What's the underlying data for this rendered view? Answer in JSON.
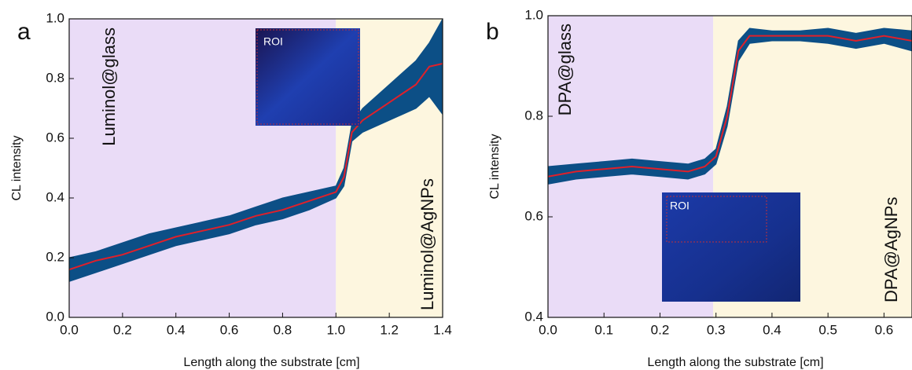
{
  "chart_data": [
    {
      "type": "line",
      "panel_label": "a",
      "xlabel": "Length along the substrate [cm]",
      "ylabel": "CL intensity",
      "xlim": [
        0,
        1.4
      ],
      "ylim": [
        0,
        1.0
      ],
      "xticks": [
        {
          "value": 0,
          "label": "0.0"
        },
        0.2,
        0.4,
        0.6,
        0.8,
        {
          "value": 1,
          "label": "1.0"
        },
        1.2,
        1.4
      ],
      "yticks": [
        {
          "value": 0,
          "label": "0.0"
        },
        0.2,
        0.4,
        0.6,
        0.8,
        {
          "value": 1,
          "label": "1.0"
        }
      ],
      "regions": [
        {
          "label": "Luminol@glass",
          "x": [
            0,
            1.0
          ],
          "color": "#eadcf7"
        },
        {
          "label": "Luminol@AgNPs",
          "x": [
            1.0,
            1.4
          ],
          "color": "#fdf6df"
        }
      ],
      "inset_label": "ROI",
      "x": [
        0,
        0.1,
        0.2,
        0.3,
        0.4,
        0.5,
        0.6,
        0.7,
        0.8,
        0.9,
        1.0,
        1.03,
        1.06,
        1.1,
        1.2,
        1.3,
        1.35,
        1.4
      ],
      "band": {
        "color": "#0c4f86",
        "lower": [
          0.12,
          0.15,
          0.18,
          0.21,
          0.24,
          0.26,
          0.28,
          0.31,
          0.33,
          0.36,
          0.4,
          0.44,
          0.59,
          0.62,
          0.66,
          0.7,
          0.74,
          0.68
        ],
        "upper": [
          0.2,
          0.22,
          0.25,
          0.28,
          0.3,
          0.32,
          0.34,
          0.37,
          0.4,
          0.42,
          0.44,
          0.5,
          0.65,
          0.7,
          0.78,
          0.86,
          0.92,
          1.0
        ]
      },
      "series": [
        {
          "color": "#e0202a",
          "values": [
            0.16,
            0.19,
            0.21,
            0.24,
            0.27,
            0.29,
            0.31,
            0.34,
            0.36,
            0.39,
            0.42,
            0.47,
            0.62,
            0.66,
            0.72,
            0.78,
            0.84,
            0.85
          ]
        }
      ]
    },
    {
      "type": "line",
      "panel_label": "b",
      "xlabel": "Length along the substrate [cm]",
      "ylabel": "CL intensity",
      "xlim": [
        0,
        0.65
      ],
      "ylim": [
        0.4,
        1.0
      ],
      "xticks": [
        {
          "value": 0,
          "label": "0.0"
        },
        0.1,
        0.2,
        0.3,
        0.4,
        0.5,
        0.6
      ],
      "yticks": [
        0.4,
        0.6,
        0.8,
        {
          "value": 1,
          "label": "1.0"
        }
      ],
      "regions": [
        {
          "label": "DPA@glass",
          "x": [
            0,
            0.295
          ],
          "color": "#eadcf7"
        },
        {
          "label": "DPA@AgNPs",
          "x": [
            0.295,
            0.65
          ],
          "color": "#fdf6df"
        }
      ],
      "inset_label": "ROI",
      "x": [
        0,
        0.05,
        0.1,
        0.15,
        0.2,
        0.25,
        0.28,
        0.3,
        0.32,
        0.34,
        0.36,
        0.4,
        0.45,
        0.5,
        0.55,
        0.6,
        0.65
      ],
      "band": {
        "color": "#0c4f86",
        "lower": [
          0.665,
          0.675,
          0.68,
          0.685,
          0.68,
          0.675,
          0.685,
          0.705,
          0.78,
          0.91,
          0.945,
          0.95,
          0.95,
          0.945,
          0.935,
          0.945,
          0.93
        ],
        "upper": [
          0.7,
          0.705,
          0.71,
          0.715,
          0.71,
          0.705,
          0.715,
          0.735,
          0.82,
          0.95,
          0.975,
          0.97,
          0.97,
          0.975,
          0.965,
          0.975,
          0.97
        ]
      },
      "series": [
        {
          "color": "#e0202a",
          "values": [
            0.68,
            0.69,
            0.695,
            0.7,
            0.695,
            0.69,
            0.7,
            0.72,
            0.8,
            0.93,
            0.96,
            0.96,
            0.96,
            0.96,
            0.95,
            0.96,
            0.95
          ]
        }
      ]
    }
  ]
}
